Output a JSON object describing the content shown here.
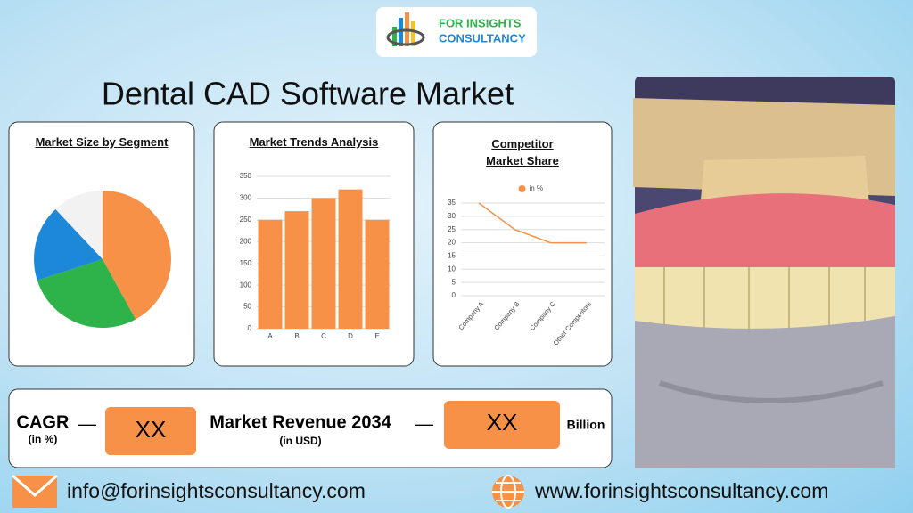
{
  "logo": {
    "line1": "FOR INSIGHTS",
    "line2": "CONSULTANCY"
  },
  "title": "Dental CAD Software Market",
  "chart_data": [
    {
      "type": "pie",
      "title": "Market Size by Segment",
      "categories": [
        null,
        null,
        null,
        null
      ],
      "values": [
        42,
        28,
        18,
        12
      ],
      "colors": [
        "#f79148",
        "#2eb34a",
        "#1e88d8",
        "#f2f2f2"
      ]
    },
    {
      "type": "bar",
      "title": "Market Trends Analysis",
      "categories": [
        "A",
        "B",
        "C",
        "D",
        "E"
      ],
      "values": [
        250,
        270,
        300,
        320,
        250
      ],
      "color": "#f79148",
      "ylim": [
        0,
        350
      ],
      "yticks": [
        0,
        50,
        100,
        150,
        200,
        250,
        300,
        350
      ],
      "grid": true
    },
    {
      "type": "line",
      "title": "Competitor Market Share",
      "categories": [
        "Company A",
        "Company B",
        "Company C",
        "Other Competitors"
      ],
      "series": [
        {
          "name": "in %",
          "color": "#f79148",
          "values": [
            35,
            25,
            20,
            20
          ]
        }
      ],
      "ylim": [
        0,
        35
      ],
      "yticks": [
        0,
        5,
        10,
        15,
        20,
        25,
        30,
        35
      ],
      "grid": true,
      "legend": "top"
    }
  ],
  "summary": {
    "cagr_label": "CAGR",
    "cagr_unit": "(in %)",
    "dash1": "—",
    "cagr_value": "XX",
    "revenue_label": "Market Revenue 2034",
    "revenue_unit": "(in USD)",
    "dash2": "—",
    "revenue_value": "XX",
    "revenue_suffix": "Billion"
  },
  "footer": {
    "email": "info@forinsightsconsultancy.com",
    "website": "www.forinsightsconsultancy.com"
  }
}
